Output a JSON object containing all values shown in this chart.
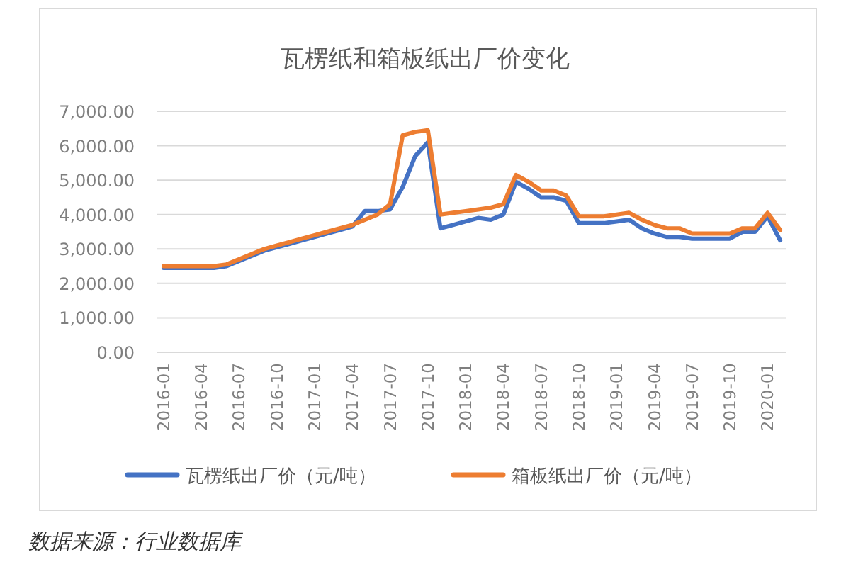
{
  "chart_data": {
    "type": "line",
    "title": "瓦楞纸和箱板纸出厂价变化",
    "categories": [
      "2016-01",
      null,
      null,
      "2016-04",
      null,
      null,
      "2016-07",
      null,
      null,
      "2016-10",
      null,
      null,
      "2017-01",
      null,
      null,
      "2017-04",
      null,
      null,
      "2017-07",
      null,
      null,
      "2017-10",
      null,
      null,
      "2018-01",
      null,
      null,
      "2018-04",
      null,
      null,
      "2018-07",
      null,
      null,
      "2018-10",
      null,
      null,
      "2019-01",
      null,
      null,
      "2019-04",
      null,
      null,
      "2019-07",
      null,
      null,
      "2019-10",
      null,
      null,
      "2020-01",
      null
    ],
    "series": [
      {
        "name": "瓦楞纸出厂价（元/吨）",
        "color": "#4472c4",
        "values": [
          2450,
          2450,
          2450,
          2450,
          2450,
          2500,
          2650,
          2800,
          2950,
          3050,
          3150,
          3250,
          3350,
          3450,
          3550,
          3650,
          4100,
          4100,
          4150,
          4800,
          5700,
          6100,
          3600,
          3700,
          3800,
          3900,
          3850,
          4000,
          4950,
          4750,
          4500,
          4500,
          4400,
          3750,
          3750,
          3750,
          3800,
          3850,
          3600,
          3450,
          3350,
          3350,
          3300,
          3300,
          3300,
          3300,
          3500,
          3500,
          3950,
          3250
        ]
      },
      {
        "name": "箱板纸出厂价（元/吨）",
        "color": "#ed7d31",
        "values": [
          2500,
          2500,
          2500,
          2500,
          2500,
          2550,
          2700,
          2850,
          3000,
          3100,
          3200,
          3300,
          3400,
          3500,
          3600,
          3700,
          3850,
          4000,
          4300,
          6300,
          6400,
          6450,
          4000,
          4050,
          4100,
          4150,
          4200,
          4300,
          5150,
          4950,
          4700,
          4700,
          4550,
          3950,
          3950,
          3950,
          4000,
          4050,
          3850,
          3700,
          3600,
          3600,
          3450,
          3450,
          3450,
          3450,
          3600,
          3600,
          4050,
          3550
        ]
      }
    ],
    "ylim": [
      0,
      7000
    ],
    "yticks": [
      {
        "value": 0,
        "label": "0.00"
      },
      {
        "value": 1000,
        "label": "1,000.00"
      },
      {
        "value": 2000,
        "label": "2,000.00"
      },
      {
        "value": 3000,
        "label": "3,000.00"
      },
      {
        "value": 4000,
        "label": "4,000.00"
      },
      {
        "value": 5000,
        "label": "5,000.00"
      },
      {
        "value": 6000,
        "label": "6,000.00"
      },
      {
        "value": 7000,
        "label": "7,000.00"
      }
    ],
    "grid": "y",
    "legend": "bottom",
    "annotations": [
      "数据来源：行业数据库"
    ]
  }
}
